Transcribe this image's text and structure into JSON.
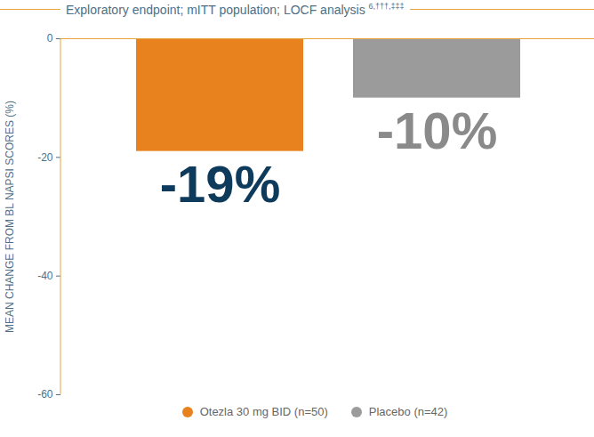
{
  "chart_data": {
    "type": "bar",
    "title": "Exploratory endpoint; mITT population; LOCF analysis 6,†††,‡‡‡",
    "y_label": "MEAN CHANGE FROM BL NAPSI SCORES (%)",
    "categories": [
      "Otezla 30 mg BID (n=50)",
      "Placebo (n=42)"
    ],
    "values": [
      -19,
      -10
    ],
    "value_labels": [
      "-19%",
      "-10%"
    ],
    "colors": [
      "#e8821e",
      "#9b9b9b"
    ],
    "ylim": [
      -60,
      0
    ],
    "yticks": [
      0,
      -20,
      -40,
      -60
    ],
    "data_labels": true,
    "tick_labels": "y",
    "legend": "bottom"
  }
}
